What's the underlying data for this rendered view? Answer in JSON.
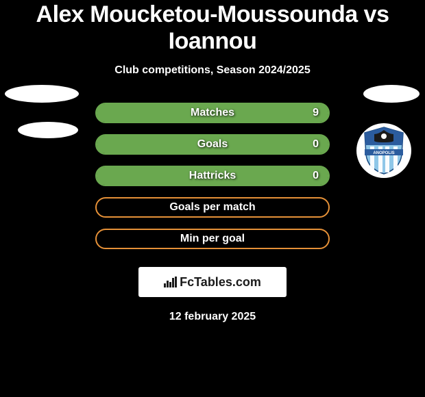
{
  "title": "Alex Moucketou-Moussounda vs Ioannou",
  "subtitle": "Club competitions, Season 2024/2025",
  "date": "12 february 2025",
  "brand": "FcTables.com",
  "colors": {
    "green": "#6aa84f",
    "orange": "#e69138",
    "white": "#ffffff",
    "black": "#000000"
  },
  "stats": [
    {
      "label": "Matches",
      "right_value": "9",
      "border_color": "#6aa84f",
      "fill_color": "#6aa84f",
      "fill_side": "right",
      "fill_width_pct": 100
    },
    {
      "label": "Goals",
      "right_value": "0",
      "border_color": "#6aa84f",
      "fill_color": "#6aa84f",
      "fill_side": "right",
      "fill_width_pct": 100
    },
    {
      "label": "Hattricks",
      "right_value": "0",
      "border_color": "#6aa84f",
      "fill_color": "#6aa84f",
      "fill_side": "right",
      "fill_width_pct": 100
    },
    {
      "label": "Goals per match",
      "right_value": "",
      "border_color": "#e69138",
      "fill_color": null,
      "fill_side": null,
      "fill_width_pct": 0
    },
    {
      "label": "Min per goal",
      "right_value": "",
      "border_color": "#e69138",
      "fill_color": null,
      "fill_side": null,
      "fill_width_pct": 0
    }
  ],
  "badge": {
    "shield_top_color": "#2b5c9e",
    "shield_bottom_color": "#8fc7e8",
    "stripe_color": "#ffffff",
    "text": "ANOPOLIS"
  }
}
